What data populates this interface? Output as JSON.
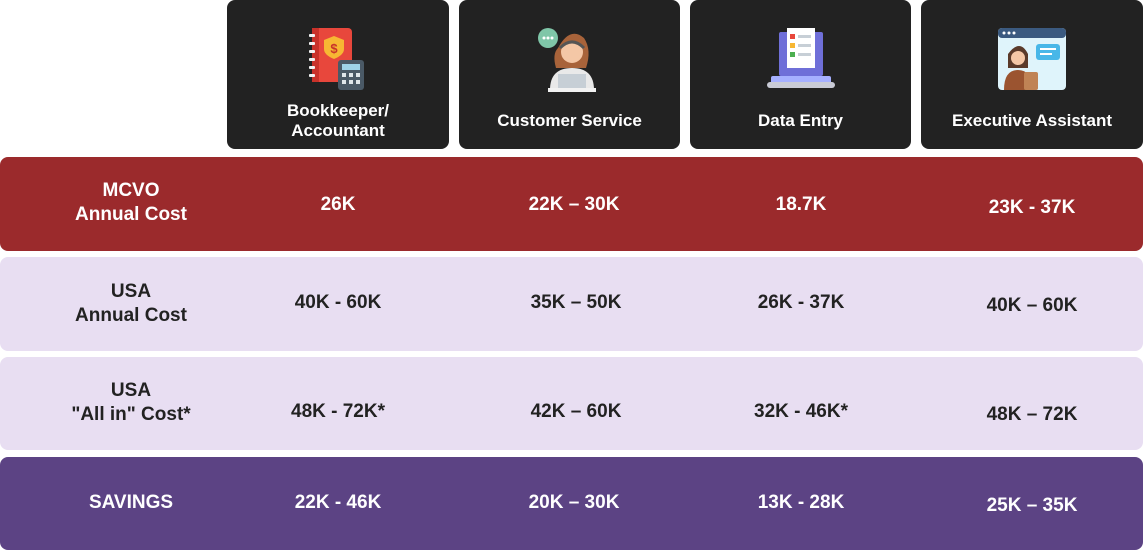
{
  "colors": {
    "header_bg": "#222222",
    "mcvo_row": "#9b2a2c",
    "usa_row": "#e8def2",
    "savings_row": "#5c4384"
  },
  "columns": [
    {
      "label": "Bookkeeper/\nAccountant",
      "icon": "ledger-calculator-icon"
    },
    {
      "label": "Customer Service",
      "icon": "headset-agent-icon"
    },
    {
      "label": "Data Entry",
      "icon": "laptop-checklist-icon"
    },
    {
      "label": "Executive Assistant",
      "icon": "assistant-window-icon"
    }
  ],
  "rows": [
    {
      "label": "MCVO\nAnnual Cost",
      "values": [
        "26K",
        "22K – 30K",
        "18.7K",
        "23K - 37K"
      ]
    },
    {
      "label": "USA\nAnnual Cost",
      "values": [
        "40K - 60K",
        "35K – 50K",
        "26K - 37K",
        "40K – 60K"
      ]
    },
    {
      "label": "USA\n\"All in\" Cost*",
      "values": [
        "48K - 72K*",
        "42K – 60K",
        "32K - 46K*",
        "48K – 72K"
      ]
    },
    {
      "label": "SAVINGS",
      "values": [
        "22K - 46K",
        "20K – 30K",
        "13K - 28K",
        "25K – 35K"
      ]
    }
  ]
}
